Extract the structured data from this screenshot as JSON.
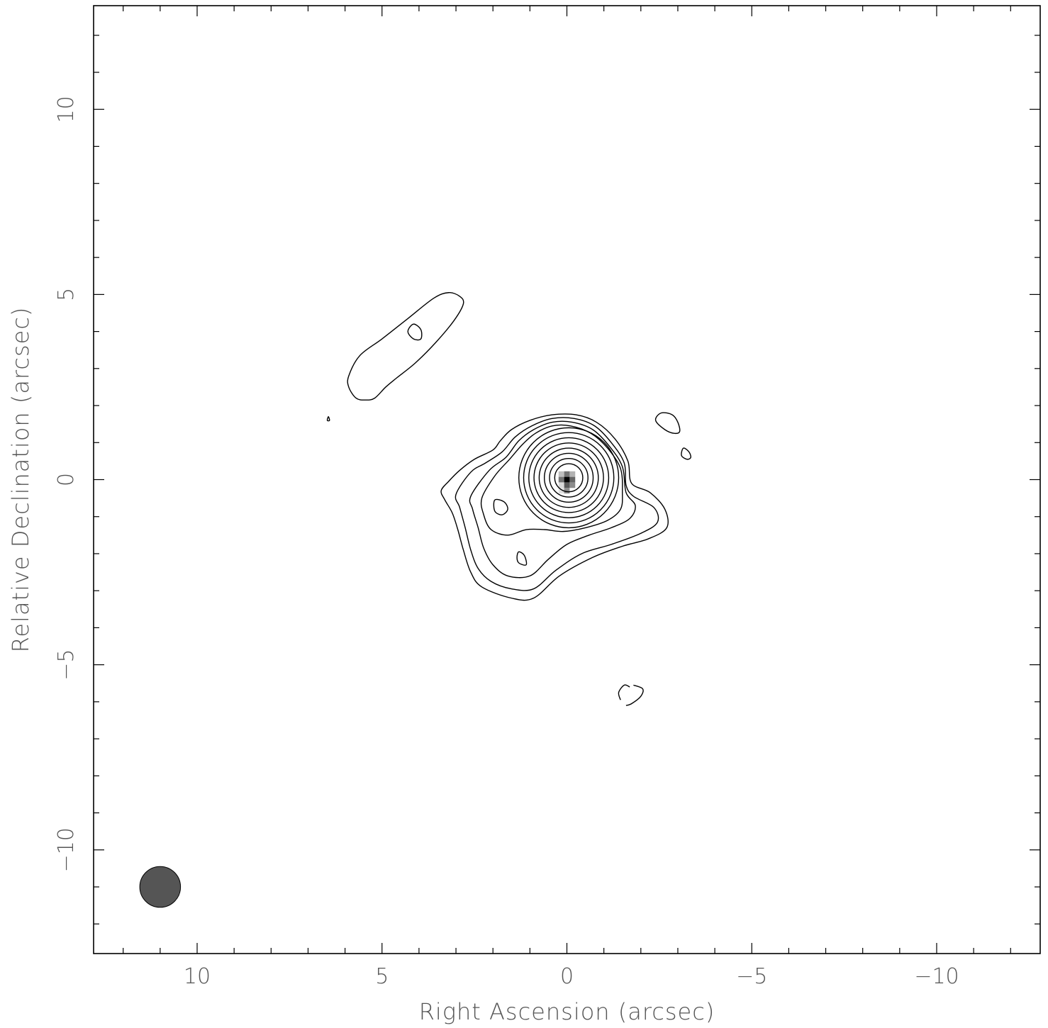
{
  "chart_data": {
    "type": "contour",
    "xlabel": "Right Ascension  (arcsec)",
    "ylabel": "Relative Declination  (arcsec)",
    "xlim": [
      12.8,
      -12.8
    ],
    "ylim": [
      -12.8,
      12.8
    ],
    "x_ticks": [
      10,
      5,
      0,
      -5,
      -10
    ],
    "x_tick_labels": [
      "10",
      "5",
      "0",
      "−5",
      "−10"
    ],
    "y_ticks": [
      10,
      5,
      0,
      -5,
      -10
    ],
    "y_tick_labels": [
      "10",
      "5",
      "0",
      "−5",
      "−10"
    ],
    "minor_tick_step": 1,
    "beam": {
      "x": 11.0,
      "y": -11.0,
      "major": 1.05,
      "minor": 1.05,
      "color": "#555555"
    },
    "peak": {
      "x": 0.0,
      "y": 0.0
    },
    "main_contours": [
      [
        [
          3.4,
          -0.3
        ],
        [
          3.3,
          -0.55
        ],
        [
          3.1,
          -0.9
        ],
        [
          2.95,
          -1.35
        ],
        [
          2.8,
          -1.9
        ],
        [
          2.6,
          -2.5
        ],
        [
          2.3,
          -2.9
        ],
        [
          1.5,
          -3.2
        ],
        [
          0.9,
          -3.2
        ],
        [
          0.2,
          -2.6
        ],
        [
          -0.7,
          -2.1
        ],
        [
          -1.5,
          -1.8
        ],
        [
          -2.2,
          -1.6
        ],
        [
          -2.7,
          -1.3
        ],
        [
          -2.65,
          -0.8
        ],
        [
          -2.25,
          -0.35
        ],
        [
          -1.75,
          -0.1
        ],
        [
          -1.65,
          0.5
        ],
        [
          -1.3,
          1.1
        ],
        [
          -0.8,
          1.55
        ],
        [
          -0.25,
          1.75
        ],
        [
          0.4,
          1.75
        ],
        [
          1.0,
          1.6
        ],
        [
          1.5,
          1.35
        ],
        [
          1.8,
          1.05
        ],
        [
          2.0,
          0.8
        ],
        [
          2.5,
          0.55
        ],
        [
          2.9,
          0.25
        ],
        [
          3.2,
          -0.05
        ]
      ],
      [
        [
          3.0,
          -0.4
        ],
        [
          2.9,
          -0.75
        ],
        [
          2.75,
          -1.3
        ],
        [
          2.6,
          -1.9
        ],
        [
          2.4,
          -2.4
        ],
        [
          2.05,
          -2.75
        ],
        [
          1.5,
          -2.95
        ],
        [
          0.9,
          -2.95
        ],
        [
          0.3,
          -2.45
        ],
        [
          -0.4,
          -2.0
        ],
        [
          -1.2,
          -1.75
        ],
        [
          -2.0,
          -1.45
        ],
        [
          -2.45,
          -1.15
        ],
        [
          -2.35,
          -0.75
        ],
        [
          -1.8,
          -0.45
        ],
        [
          -1.6,
          -0.15
        ],
        [
          -1.55,
          0.45
        ],
        [
          -1.2,
          1.0
        ],
        [
          -0.75,
          1.45
        ],
        [
          -0.2,
          1.65
        ],
        [
          0.4,
          1.65
        ],
        [
          0.95,
          1.45
        ],
        [
          1.4,
          1.15
        ],
        [
          1.75,
          0.75
        ],
        [
          2.2,
          0.45
        ],
        [
          2.6,
          0.2
        ]
      ],
      [
        [
          2.6,
          -0.45
        ],
        [
          2.55,
          -0.8
        ],
        [
          2.4,
          -1.3
        ],
        [
          2.25,
          -1.85
        ],
        [
          2.0,
          -2.3
        ],
        [
          1.6,
          -2.6
        ],
        [
          1.0,
          -2.6
        ],
        [
          0.5,
          -2.15
        ],
        [
          0.0,
          -1.75
        ],
        [
          -0.6,
          -1.5
        ],
        [
          -1.2,
          -1.3
        ],
        [
          -1.7,
          -1.05
        ],
        [
          -1.85,
          -0.7
        ],
        [
          -1.6,
          -0.35
        ],
        [
          -1.5,
          0.35
        ],
        [
          -1.15,
          0.9
        ],
        [
          -0.7,
          1.35
        ],
        [
          -0.15,
          1.55
        ],
        [
          0.4,
          1.55
        ],
        [
          0.9,
          1.35
        ],
        [
          1.3,
          1.05
        ],
        [
          1.65,
          0.6
        ],
        [
          2.1,
          0.25
        ]
      ],
      [
        [
          2.3,
          -0.5
        ],
        [
          2.25,
          -0.95
        ],
        [
          2.05,
          -1.35
        ],
        [
          1.6,
          -1.5
        ],
        [
          1.1,
          -1.35
        ],
        [
          0.6,
          -1.35
        ],
        [
          0.1,
          -1.4
        ],
        [
          -0.5,
          -1.3
        ],
        [
          -1.1,
          -1.1
        ],
        [
          -1.45,
          -0.8
        ],
        [
          -1.5,
          -0.35
        ],
        [
          -1.45,
          0.3
        ],
        [
          -1.1,
          0.85
        ],
        [
          -0.65,
          1.25
        ],
        [
          -0.1,
          1.45
        ],
        [
          0.4,
          1.45
        ],
        [
          0.85,
          1.25
        ],
        [
          1.2,
          0.95
        ],
        [
          1.55,
          0.55
        ],
        [
          1.95,
          0.1
        ]
      ]
    ],
    "main_contour_circles": [
      {
        "cx": -0.05,
        "cy": 0.05,
        "r": [
          1.35,
          1.22,
          1.08,
          0.94,
          0.8,
          0.66,
          0.52,
          0.38
        ]
      }
    ],
    "island_contours": [
      [
        [
          1.95,
          -0.55
        ],
        [
          1.7,
          -0.6
        ],
        [
          1.6,
          -0.8
        ],
        [
          1.75,
          -0.95
        ],
        [
          1.95,
          -0.85
        ]
      ],
      [
        [
          1.3,
          -1.95
        ],
        [
          1.15,
          -2.05
        ],
        [
          1.1,
          -2.3
        ],
        [
          1.3,
          -2.25
        ],
        [
          1.35,
          -2.1
        ]
      ],
      [
        [
          5.9,
          2.5
        ],
        [
          5.9,
          2.8
        ],
        [
          5.6,
          3.35
        ],
        [
          5.0,
          3.8
        ],
        [
          4.3,
          4.35
        ],
        [
          3.6,
          4.9
        ],
        [
          3.2,
          5.05
        ],
        [
          2.9,
          4.95
        ],
        [
          2.8,
          4.75
        ],
        [
          3.05,
          4.3
        ],
        [
          3.55,
          3.7
        ],
        [
          4.1,
          3.15
        ],
        [
          4.6,
          2.75
        ],
        [
          4.9,
          2.5
        ],
        [
          5.2,
          2.2
        ],
        [
          5.45,
          2.15
        ],
        [
          5.7,
          2.2
        ]
      ],
      [
        [
          4.3,
          4.0
        ],
        [
          4.15,
          4.2
        ],
        [
          3.95,
          4.05
        ],
        [
          3.95,
          3.8
        ],
        [
          4.15,
          3.8
        ]
      ],
      [
        [
          -2.4,
          1.6
        ],
        [
          -2.55,
          1.8
        ],
        [
          -2.85,
          1.75
        ],
        [
          -3.0,
          1.55
        ],
        [
          -3.05,
          1.3
        ],
        [
          -2.9,
          1.25
        ],
        [
          -2.65,
          1.35
        ]
      ],
      [
        [
          -3.15,
          0.85
        ],
        [
          -3.3,
          0.75
        ],
        [
          -3.35,
          0.6
        ],
        [
          -3.25,
          0.55
        ],
        [
          -3.1,
          0.65
        ]
      ],
      [
        [
          6.45,
          1.7
        ],
        [
          6.42,
          1.6
        ],
        [
          6.48,
          1.6
        ]
      ]
    ],
    "dashed_contours": [
      [
        [
          -1.45,
          -5.95
        ],
        [
          -1.4,
          -5.75
        ],
        [
          -1.55,
          -5.55
        ],
        [
          -1.7,
          -5.6
        ]
      ],
      [
        [
          -1.8,
          -5.55
        ],
        [
          -2.05,
          -5.65
        ],
        [
          -2.0,
          -5.85
        ],
        [
          -1.75,
          -6.05
        ],
        [
          -1.6,
          -6.1
        ]
      ]
    ],
    "peak_pixels": [
      {
        "x": 0.0,
        "y": 0.0,
        "v": 1.0
      },
      {
        "x": 0.15,
        "y": 0.0,
        "v": 0.55
      },
      {
        "x": -0.15,
        "y": 0.0,
        "v": 0.6
      },
      {
        "x": 0.0,
        "y": 0.15,
        "v": 0.55
      },
      {
        "x": 0.0,
        "y": -0.15,
        "v": 0.65
      },
      {
        "x": 0.15,
        "y": 0.15,
        "v": 0.25
      },
      {
        "x": -0.15,
        "y": 0.15,
        "v": 0.3
      },
      {
        "x": 0.15,
        "y": -0.15,
        "v": 0.15
      },
      {
        "x": -0.15,
        "y": -0.15,
        "v": 0.45
      },
      {
        "x": 0.15,
        "y": -0.3,
        "v": 0.12
      },
      {
        "x": 0.0,
        "y": -0.3,
        "v": 0.45
      }
    ]
  }
}
